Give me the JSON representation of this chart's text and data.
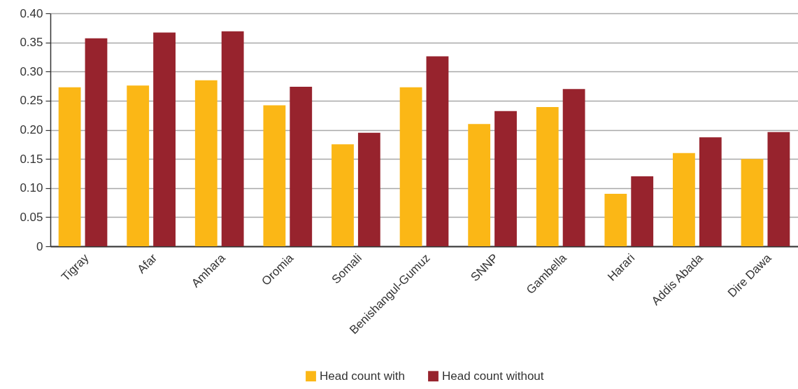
{
  "chart_data": {
    "type": "bar",
    "categories": [
      "Tigray",
      "Afar",
      "Amhara",
      "Oromia",
      "Somali",
      "Benishangul-Gumuz",
      "SNNP",
      "Gambella",
      "Harari",
      "Addis Abada",
      "Dire Dawa"
    ],
    "series": [
      {
        "name": "Head count with",
        "color": "#fbb716",
        "values": [
          0.273,
          0.276,
          0.285,
          0.242,
          0.175,
          0.273,
          0.21,
          0.239,
          0.09,
          0.16,
          0.15
        ]
      },
      {
        "name": "Head count without",
        "color": "#97232d",
        "values": [
          0.357,
          0.367,
          0.369,
          0.274,
          0.195,
          0.326,
          0.232,
          0.27,
          0.12,
          0.187,
          0.196
        ]
      }
    ],
    "ylim": [
      0,
      0.4
    ],
    "yticks": [
      0,
      0.05,
      {
        "value": 0.1,
        "label": "0.10"
      },
      0.15,
      {
        "value": 0.2,
        "label": "0.20"
      },
      0.25,
      {
        "value": 0.3,
        "label": "0.30"
      },
      0.35,
      {
        "value": 0.4,
        "label": "0.40"
      }
    ],
    "grid": "y",
    "legend": "bottom"
  }
}
